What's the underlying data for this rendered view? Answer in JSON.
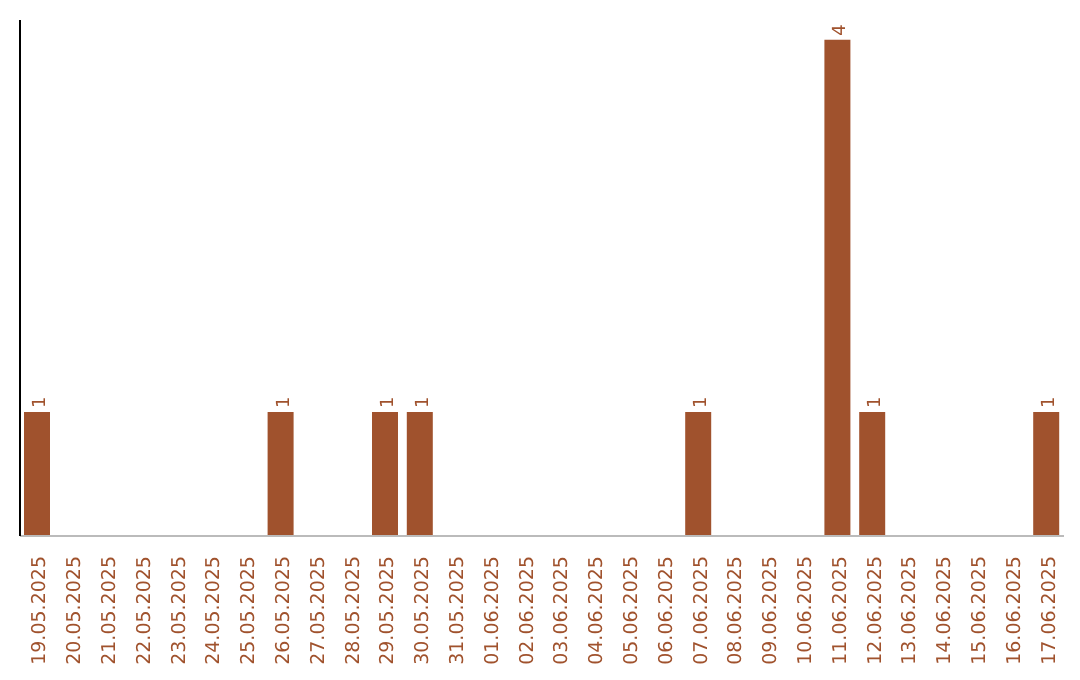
{
  "chart_data": {
    "type": "bar",
    "categories": [
      "19.05.2025",
      "20.05.2025",
      "21.05.2025",
      "22.05.2025",
      "23.05.2025",
      "24.05.2025",
      "25.05.2025",
      "26.05.2025",
      "27.05.2025",
      "28.05.2025",
      "29.05.2025",
      "30.05.2025",
      "31.05.2025",
      "01.06.2025",
      "02.06.2025",
      "03.06.2025",
      "04.06.2025",
      "05.06.2025",
      "06.06.2025",
      "07.06.2025",
      "08.06.2025",
      "09.06.2025",
      "10.06.2025",
      "11.06.2025",
      "12.06.2025",
      "13.06.2025",
      "14.06.2025",
      "15.06.2025",
      "16.06.2025",
      "17.06.2025"
    ],
    "values": [
      1,
      0,
      0,
      0,
      0,
      0,
      0,
      1,
      0,
      0,
      1,
      1,
      0,
      0,
      0,
      0,
      0,
      0,
      0,
      1,
      0,
      0,
      0,
      4,
      1,
      0,
      0,
      0,
      0,
      1
    ],
    "color": "#a0522d",
    "value_labels": [
      "1",
      null,
      null,
      null,
      null,
      null,
      null,
      "1",
      null,
      null,
      "1",
      "1",
      null,
      null,
      null,
      null,
      null,
      null,
      null,
      "1",
      null,
      null,
      null,
      "4",
      "1",
      null,
      null,
      null,
      null,
      "1"
    ]
  }
}
